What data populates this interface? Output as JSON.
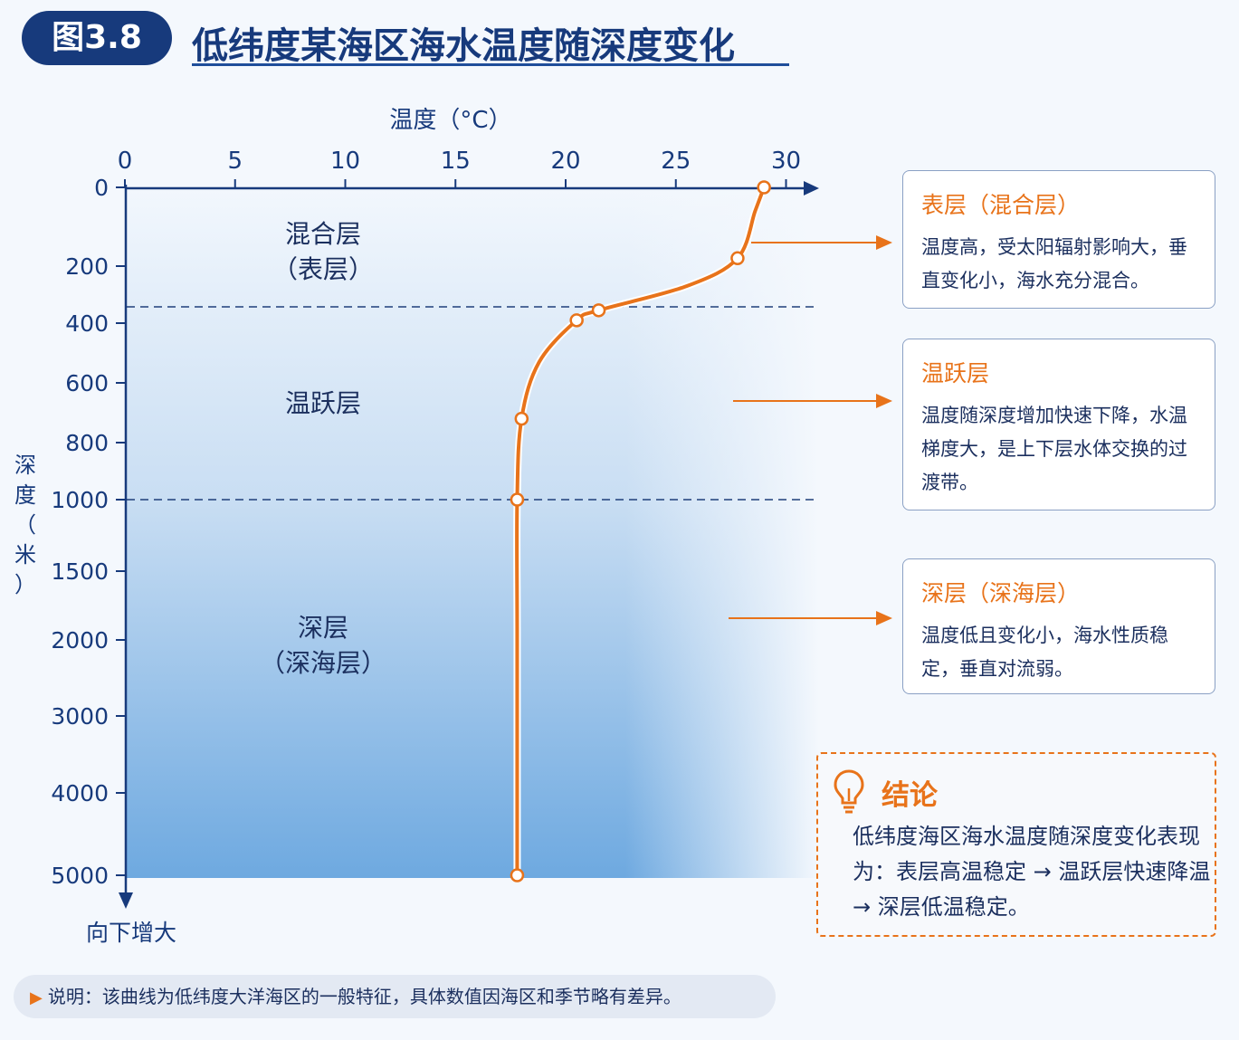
{
  "header": {
    "figure_label": "图3.8",
    "title": "低纬度某海区海水温度随深度变化"
  },
  "chart_data": {
    "type": "line",
    "xlabel": "温度（°C）",
    "ylabel": "深度（米）",
    "y_axis_direction_label": "向下增大",
    "x_ticks": [
      0,
      5,
      10,
      15,
      20,
      25,
      30
    ],
    "xlim": [
      0,
      31.5
    ],
    "y_ticks": [
      0,
      200,
      400,
      600,
      800,
      1000,
      1500,
      2000,
      3000,
      4000,
      5000
    ],
    "y_scale": "piecewise: 0–1000 m expanded, 1000–5000 m compressed",
    "grid": false,
    "series": [
      {
        "points": [
          {
            "temp": 29.0,
            "depth": 0
          },
          {
            "temp": 28.6,
            "depth": 60
          },
          {
            "temp": 27.8,
            "depth": 180
          },
          {
            "temp": 25.5,
            "depth": 270
          },
          {
            "temp": 21.5,
            "depth": 355
          },
          {
            "temp": 20.5,
            "depth": 390
          },
          {
            "temp": 18.8,
            "depth": 530
          },
          {
            "temp": 18.0,
            "depth": 720
          },
          {
            "temp": 17.8,
            "depth": 1000
          },
          {
            "temp": 17.8,
            "depth": 2000
          },
          {
            "temp": 17.8,
            "depth": 5000
          }
        ],
        "marked_points": [
          {
            "temp": 29.0,
            "depth": 0
          },
          {
            "temp": 27.8,
            "depth": 180
          },
          {
            "temp": 21.5,
            "depth": 355
          },
          {
            "temp": 20.5,
            "depth": 390
          },
          {
            "temp": 18.0,
            "depth": 720
          },
          {
            "temp": 17.8,
            "depth": 1000
          },
          {
            "temp": 17.8,
            "depth": 5000
          }
        ],
        "color": "#e8731a"
      }
    ],
    "layer_boundaries": [
      355,
      1000
    ],
    "layer_labels": [
      {
        "lines": [
          "混合层",
          "（表层）"
        ]
      },
      {
        "lines": [
          "温跃层"
        ]
      },
      {
        "lines": [
          "深层",
          "（深海层）"
        ]
      }
    ],
    "colors": {
      "axis": "#173a7c",
      "curve": "#e8731a",
      "water_top": "#f2f7fd",
      "water_bottom": "#6ea9e0",
      "arrow": "#e8731a"
    }
  },
  "annotations": [
    {
      "title": "表层（混合层）",
      "text": "温度高，受太阳辐射影响大，垂直变化小，海水充分混合。"
    },
    {
      "title": "温跃层",
      "text": "温度随深度增加快速下降，水温梯度大，是上下层水体交换的过渡带。"
    },
    {
      "title": "深层（深海层）",
      "text": "温度低且变化小，海水性质稳定，垂直对流弱。"
    }
  ],
  "conclusion": {
    "icon": "lightbulb-icon",
    "title": "结论",
    "text": "低纬度海区海水温度随深度变化表现为：表层高温稳定 → 温跃层快速降温 → 深层低温稳定。"
  },
  "note": {
    "icon": "triangle-right-icon",
    "text": "说明：该曲线为低纬度大洋海区的一般特征，具体数值因海区和季节略有差异。"
  }
}
